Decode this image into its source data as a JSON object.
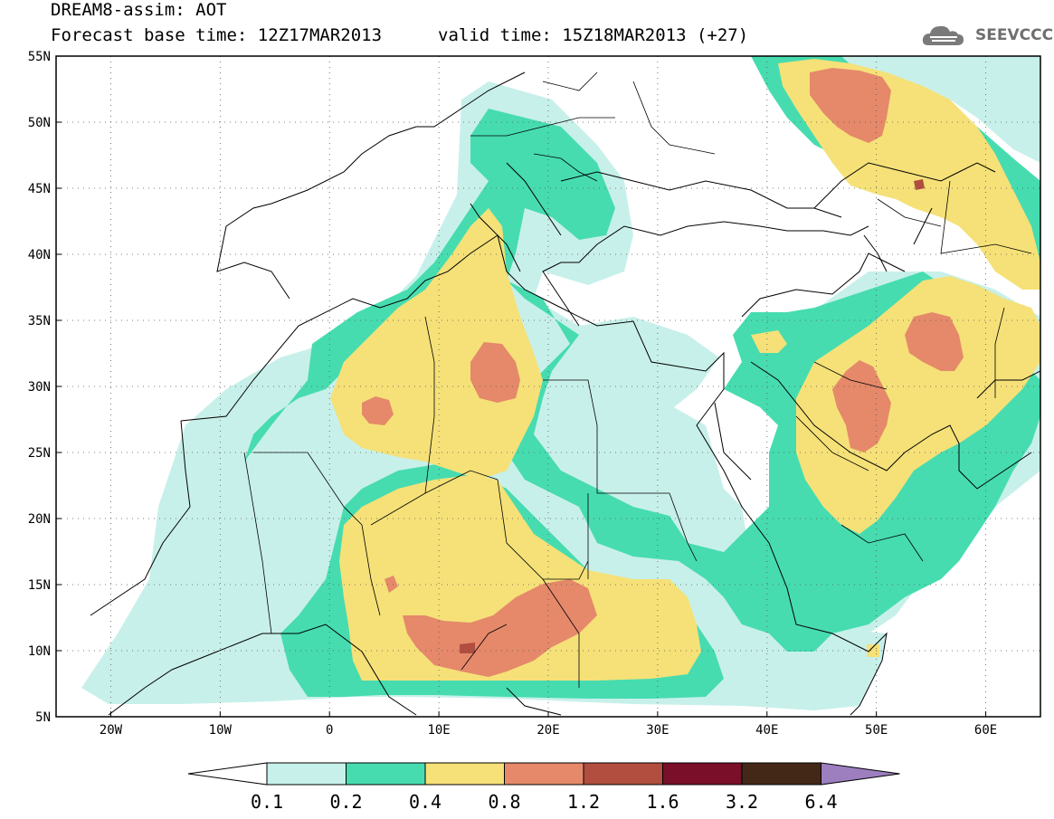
{
  "header": {
    "title_line1": "DREAM8-assim: AOT",
    "title_line2": "Forecast base time: 12Z17MAR2013",
    "valid_time": "valid time: 15Z18MAR2013 (+27)",
    "logo_text": "SEEVCCC",
    "logo_icon": "cloud-icon"
  },
  "map": {
    "lon_range": [
      -25,
      65
    ],
    "lat_range": [
      5,
      55
    ],
    "lat_labels": [
      "55N",
      "50N",
      "45N",
      "40N",
      "35N",
      "30N",
      "25N",
      "20N",
      "15N",
      "10N",
      "5N"
    ],
    "lat_values": [
      55,
      50,
      45,
      40,
      35,
      30,
      25,
      20,
      15,
      10,
      5
    ],
    "lon_labels": [
      "20W",
      "10W",
      "0",
      "10E",
      "20E",
      "30E",
      "40E",
      "50E",
      "60E"
    ],
    "lon_values": [
      -20,
      -10,
      0,
      10,
      20,
      30,
      40,
      50,
      60
    ],
    "grid": "dotted"
  },
  "legend": {
    "labels": [
      "0.1",
      "0.2",
      "0.4",
      "0.8",
      "1.2",
      "1.6",
      "3.2",
      "6.4"
    ],
    "colors": [
      "#ffffff",
      "#c8f0ea",
      "#46dcb0",
      "#f5e178",
      "#e5896a",
      "#b14e40",
      "#7a0f2a",
      "#432818",
      "#9d7fc0"
    ]
  },
  "aot_colors": {
    "very_low": "#c8f0ea",
    "low": "#46dcb0",
    "moderate": "#f5e178",
    "high": "#e5896a",
    "very_high": "#b14e40"
  }
}
